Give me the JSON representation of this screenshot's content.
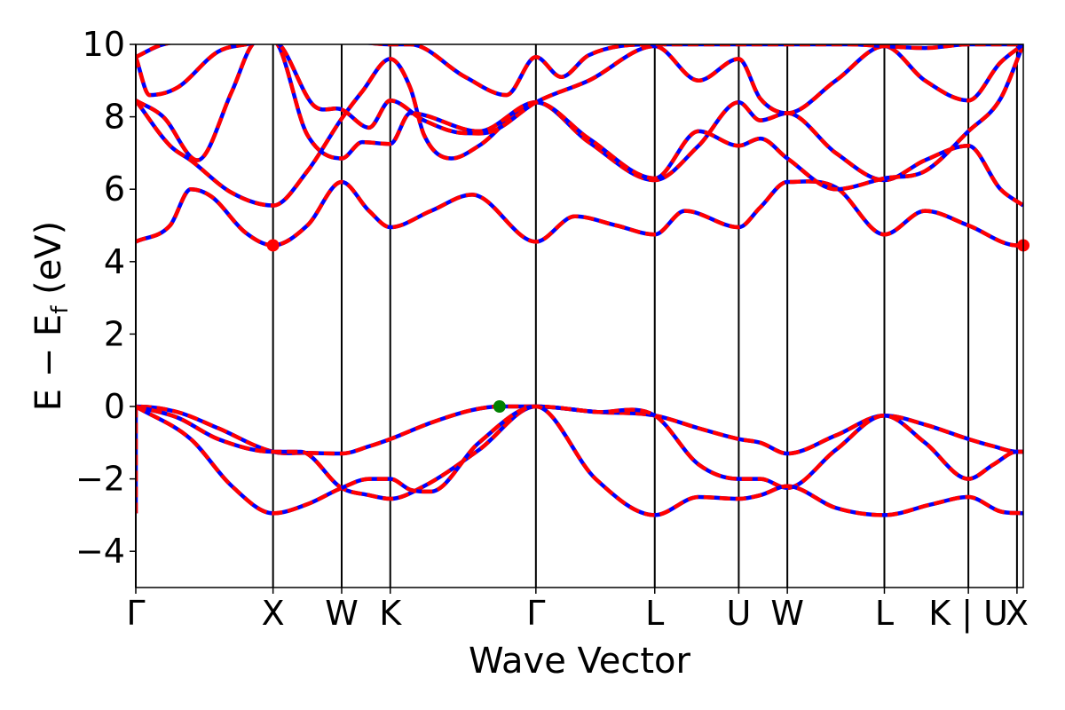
{
  "chart_data": {
    "type": "line",
    "title": "",
    "xlabel": "Wave Vector",
    "ylabel": "E − E",
    "ylabel_subscript": "f",
    "ylabel_unit": " (eV)",
    "ylim": [
      -5,
      10
    ],
    "yticks": [
      -4,
      -2,
      0,
      2,
      4,
      6,
      8,
      10
    ],
    "ytick_labels": [
      "−4",
      "−2",
      "0",
      "2",
      "4",
      "6",
      "8",
      "10"
    ],
    "xlim": [
      0,
      6.466
    ],
    "kpoints": [
      {
        "label": "Γ",
        "x": 0.0
      },
      {
        "label": "X",
        "x": 1.0
      },
      {
        "label": "W",
        "x": 1.5
      },
      {
        "label": "K",
        "x": 1.854
      },
      {
        "label": "Γ",
        "x": 2.915
      },
      {
        "label": "L",
        "x": 3.781
      },
      {
        "label": "U",
        "x": 4.393
      },
      {
        "label": "W",
        "x": 4.747
      },
      {
        "label": "L",
        "x": 5.454
      },
      {
        "label": "K | U",
        "x": 6.066
      },
      {
        "label": "X",
        "x": 6.42
      }
    ],
    "line_colors": {
      "series_a": "#ff0000",
      "series_b": "#0000ff",
      "vbm_marker": "#008000",
      "cbm_marker": "#ff0000"
    },
    "vbm": {
      "x": 2.65,
      "y": 0.0
    },
    "cbm": [
      {
        "x": 1.0,
        "y": 4.45
      },
      {
        "x": 6.466,
        "y": 4.45
      }
    ],
    "bands": [
      [
        [
          0,
          -2.95
        ],
        [
          0,
          0
        ],
        [
          0.3,
          -0.15
        ],
        [
          0.6,
          -0.6
        ],
        [
          1.0,
          -1.25
        ],
        [
          1.25,
          -1.28
        ],
        [
          1.5,
          -1.3
        ],
        [
          1.7,
          -1.1
        ],
        [
          1.854,
          -0.9
        ],
        [
          2.15,
          -0.45
        ],
        [
          2.45,
          -0.1
        ],
        [
          2.65,
          0.0
        ],
        [
          2.915,
          0.0
        ],
        [
          3.35,
          -0.15
        ],
        [
          3.781,
          -0.25
        ],
        [
          4.1,
          -0.6
        ],
        [
          4.393,
          -0.9
        ],
        [
          4.55,
          -1.0
        ],
        [
          4.747,
          -1.3
        ],
        [
          5.1,
          -0.8
        ],
        [
          5.454,
          -0.25
        ],
        [
          5.75,
          -0.5
        ],
        [
          6.066,
          -0.9
        ],
        [
          6.25,
          -1.1
        ],
        [
          6.42,
          -1.25
        ],
        [
          6.466,
          -1.25
        ]
      ],
      [
        [
          0,
          0
        ],
        [
          0.3,
          -0.3
        ],
        [
          0.6,
          -0.9
        ],
        [
          1.0,
          -1.25
        ],
        [
          1.2,
          -1.25
        ],
        [
          1.5,
          -2.25
        ],
        [
          1.7,
          -2.45
        ],
        [
          1.854,
          -2.55
        ],
        [
          2.1,
          -2.2
        ],
        [
          2.5,
          -1.2
        ],
        [
          2.915,
          0.0
        ],
        [
          3.35,
          -0.15
        ],
        [
          3.781,
          -0.25
        ],
        [
          4.1,
          -1.6
        ],
        [
          4.393,
          -2.0
        ],
        [
          4.55,
          -2.0
        ],
        [
          4.747,
          -2.25
        ],
        [
          5.1,
          -1.2
        ],
        [
          5.454,
          -0.25
        ],
        [
          5.75,
          -1.0
        ],
        [
          6.066,
          -2.0
        ],
        [
          6.25,
          -1.6
        ],
        [
          6.42,
          -1.25
        ],
        [
          6.466,
          -1.25
        ]
      ],
      [
        [
          0,
          0
        ],
        [
          0.4,
          -0.9
        ],
        [
          0.7,
          -2.2
        ],
        [
          1.0,
          -2.95
        ],
        [
          1.25,
          -2.7
        ],
        [
          1.5,
          -2.25
        ],
        [
          1.7,
          -2.0
        ],
        [
          1.854,
          -2.0
        ],
        [
          2.0,
          -2.3
        ],
        [
          2.15,
          -2.35
        ],
        [
          2.5,
          -1.0
        ],
        [
          2.915,
          0.0
        ],
        [
          3.35,
          -2.0
        ],
        [
          3.781,
          -3.0
        ],
        [
          4.1,
          -2.5
        ],
        [
          4.393,
          -2.55
        ],
        [
          4.55,
          -2.45
        ],
        [
          4.747,
          -2.2
        ],
        [
          5.1,
          -2.8
        ],
        [
          5.454,
          -3.0
        ],
        [
          5.8,
          -2.7
        ],
        [
          6.066,
          -2.5
        ],
        [
          6.3,
          -2.9
        ],
        [
          6.466,
          -2.95
        ]
      ],
      [
        [
          0,
          4.55
        ],
        [
          0.25,
          5.0
        ],
        [
          0.4,
          6.0
        ],
        [
          0.55,
          5.8
        ],
        [
          0.8,
          4.8
        ],
        [
          1.0,
          4.45
        ],
        [
          1.25,
          5.0
        ],
        [
          1.5,
          6.2
        ],
        [
          1.7,
          5.4
        ],
        [
          1.854,
          4.95
        ],
        [
          2.15,
          5.4
        ],
        [
          2.45,
          5.85
        ],
        [
          2.915,
          4.55
        ],
        [
          3.2,
          5.25
        ],
        [
          3.5,
          5.0
        ],
        [
          3.781,
          4.75
        ],
        [
          4.0,
          5.4
        ],
        [
          4.393,
          4.95
        ],
        [
          4.55,
          5.5
        ],
        [
          4.747,
          6.2
        ],
        [
          5.1,
          6.05
        ],
        [
          5.454,
          4.75
        ],
        [
          5.75,
          5.4
        ],
        [
          6.066,
          5.0
        ],
        [
          6.42,
          4.45
        ],
        [
          6.466,
          4.45
        ]
      ],
      [
        [
          0,
          8.45
        ],
        [
          0.25,
          7.2
        ],
        [
          0.4,
          6.8
        ],
        [
          0.7,
          5.9
        ],
        [
          1.0,
          5.55
        ],
        [
          1.25,
          6.5
        ],
        [
          1.5,
          7.95
        ],
        [
          1.65,
          8.7
        ],
        [
          1.854,
          9.6
        ],
        [
          2.0,
          8.8
        ],
        [
          2.1,
          7.5
        ],
        [
          2.3,
          6.85
        ],
        [
          2.5,
          7.2
        ],
        [
          2.915,
          8.4
        ],
        [
          3.3,
          7.3
        ],
        [
          3.781,
          6.25
        ],
        [
          4.1,
          7.2
        ],
        [
          4.393,
          8.4
        ],
        [
          4.55,
          7.9
        ],
        [
          4.747,
          8.1
        ],
        [
          5.1,
          7.0
        ],
        [
          5.454,
          6.25
        ],
        [
          5.75,
          6.8
        ],
        [
          6.066,
          7.2
        ],
        [
          6.3,
          6.0
        ],
        [
          6.466,
          5.55
        ]
      ],
      [
        [
          0,
          8.45
        ],
        [
          0.2,
          8.0
        ],
        [
          0.45,
          6.8
        ],
        [
          0.7,
          8.7
        ],
        [
          0.85,
          10.0
        ],
        [
          1.0,
          10.1
        ],
        [
          1.25,
          7.5
        ],
        [
          1.5,
          6.85
        ],
        [
          1.65,
          7.3
        ],
        [
          1.854,
          7.25
        ],
        [
          2.0,
          8.1
        ],
        [
          2.5,
          7.6
        ],
        [
          2.915,
          8.4
        ],
        [
          3.3,
          7.4
        ],
        [
          3.781,
          6.3
        ],
        [
          4.1,
          7.6
        ],
        [
          4.393,
          7.2
        ],
        [
          4.55,
          7.4
        ],
        [
          4.747,
          6.85
        ],
        [
          5.1,
          6.0
        ],
        [
          5.454,
          6.3
        ],
        [
          5.75,
          6.5
        ],
        [
          6.066,
          7.6
        ],
        [
          6.3,
          8.5
        ],
        [
          6.466,
          10.0
        ]
      ],
      [
        [
          0,
          9.65
        ],
        [
          0.1,
          8.6
        ],
        [
          0.3,
          8.8
        ],
        [
          0.6,
          9.8
        ],
        [
          0.8,
          10.0
        ],
        [
          1.0,
          10.1
        ],
        [
          1.3,
          8.3
        ],
        [
          1.5,
          8.2
        ],
        [
          1.7,
          7.7
        ],
        [
          1.854,
          8.45
        ],
        [
          2.1,
          7.9
        ],
        [
          2.4,
          7.55
        ],
        [
          2.6,
          7.6
        ],
        [
          2.915,
          8.4
        ],
        [
          3.3,
          9.0
        ],
        [
          3.781,
          9.95
        ],
        [
          4.1,
          9.0
        ],
        [
          4.393,
          9.6
        ],
        [
          4.55,
          8.5
        ],
        [
          4.747,
          8.1
        ],
        [
          5.1,
          9.0
        ],
        [
          5.454,
          9.95
        ],
        [
          5.75,
          9.0
        ],
        [
          6.066,
          8.45
        ],
        [
          6.3,
          9.5
        ],
        [
          6.466,
          10.0
        ]
      ],
      [
        [
          0,
          9.65
        ],
        [
          0.2,
          10.0
        ],
        [
          1.5,
          10.1
        ],
        [
          1.854,
          10.0
        ],
        [
          2.0,
          10.0
        ],
        [
          2.4,
          9.1
        ],
        [
          2.7,
          8.6
        ],
        [
          2.915,
          9.65
        ],
        [
          3.1,
          9.1
        ],
        [
          3.3,
          9.7
        ],
        [
          3.781,
          10.0
        ],
        [
          4.393,
          10.0
        ],
        [
          4.747,
          10.0
        ],
        [
          5.2,
          10.0
        ],
        [
          5.454,
          9.95
        ],
        [
          5.75,
          9.9
        ],
        [
          6.066,
          10.0
        ],
        [
          6.466,
          10.0
        ]
      ]
    ]
  }
}
